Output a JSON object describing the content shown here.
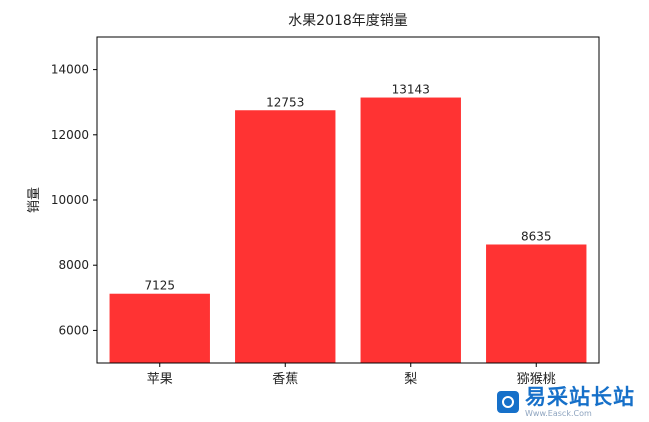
{
  "chart_data": {
    "type": "bar",
    "title": "水果2018年度销量",
    "xlabel": "",
    "ylabel": "销量",
    "categories": [
      "苹果",
      "香蕉",
      "梨",
      "猕猴桃"
    ],
    "values": [
      7125,
      12753,
      13143,
      8635
    ],
    "data_labels": [
      "7125",
      "12753",
      "13143",
      "8635"
    ],
    "ylim": [
      5000,
      15000
    ],
    "yticks": [
      6000,
      8000,
      10000,
      12000,
      14000
    ],
    "ytick_labels": [
      "6000",
      "8000",
      "10000",
      "12000",
      "14000"
    ],
    "bar_color": "#ff3333",
    "grid": false,
    "legend": "none"
  },
  "watermark": {
    "main": "易采站长站",
    "sub": "Www.Easck.Com"
  }
}
